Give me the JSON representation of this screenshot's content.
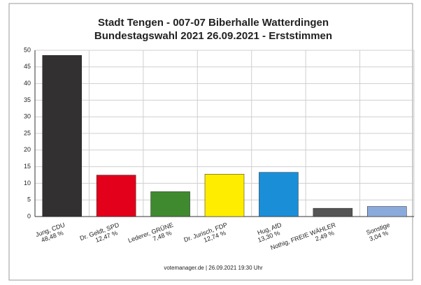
{
  "chart_data": {
    "type": "bar",
    "title": [
      "Stadt Tengen - 007-07 Biberhalle Watterdingen",
      "Bundestagswahl 2021 26.09.2021  - Erststimmen"
    ],
    "categories": [
      "Jung, CDU",
      "Dr. Geldt, SPD",
      "Lederer, GRÜNE",
      "Dr. Jurisch, FDP",
      "Hug, AfD",
      "Nothig, FREIE WÄHLER",
      "Sonstige"
    ],
    "values": [
      48.48,
      12.47,
      7.48,
      12.74,
      13.3,
      2.49,
      3.04
    ],
    "value_labels": [
      "48,48 %",
      "12,47 %",
      "7,48 %",
      "12,74 %",
      "13,30 %",
      "2,49 %",
      "3,04 %"
    ],
    "colors": [
      "#333031",
      "#e2001a",
      "#3f8a2e",
      "#ffed00",
      "#1a8fd8",
      "#555555",
      "#8aaadc"
    ],
    "ylim": [
      0,
      50
    ],
    "yticks": [
      0,
      5,
      10,
      15,
      20,
      25,
      30,
      35,
      40,
      45,
      50
    ],
    "grid": true,
    "footer": "votemanager.de | 26.09.2021 19:30 Uhr"
  }
}
